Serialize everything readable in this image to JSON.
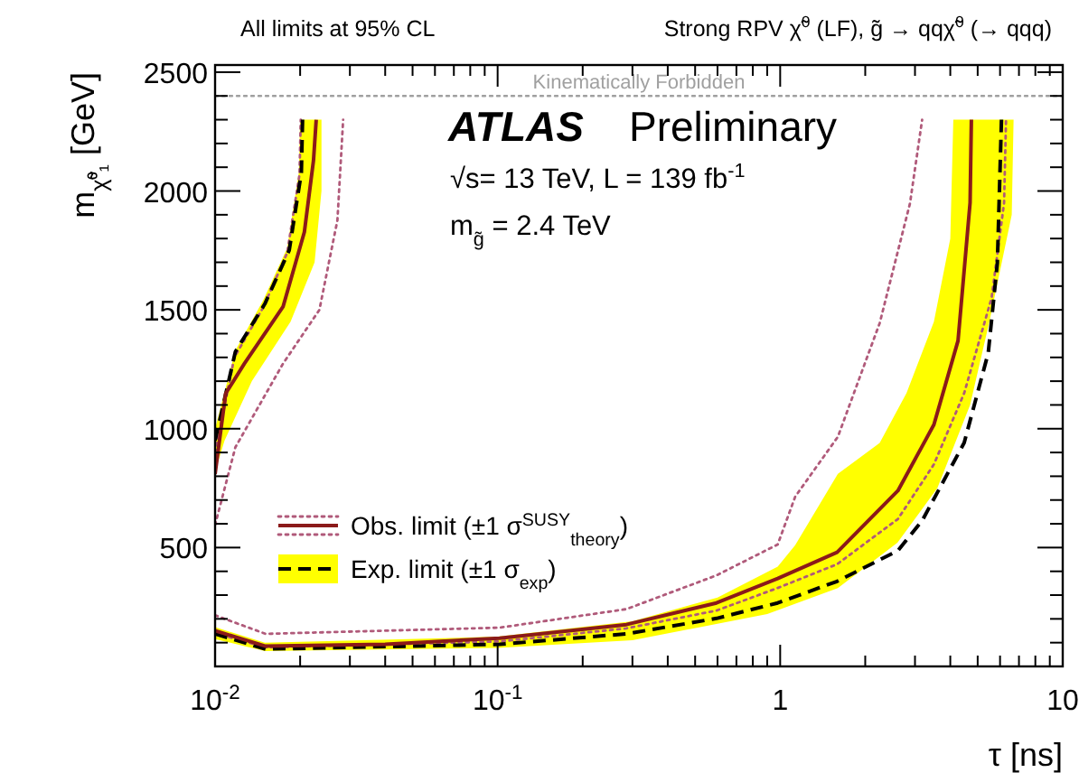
{
  "chart_data": {
    "type": "line",
    "title": "Strong RPV χ̃$^{0}$ (LF), g̃ → qqχ̃$^{0}$ (→ qqq)",
    "xlabel": "τ [ns]",
    "ylabel": "m$_{χ̃⁰₁}$ [GeV]",
    "annotations": [
      "All limits at 95% CL",
      "ATLAS",
      "Preliminary",
      "√s= 13 TeV, L = 139 fb$^{-1}$",
      "m$_{g̃}$ = 2.4 TeV"
    ],
    "log": "x",
    "xlim": [
      0.01,
      10
    ],
    "ylim": [
      0,
      2530
    ],
    "xticks": [
      {
        "value": 0.01,
        "label": "10$^{-2}$"
      },
      {
        "value": 0.02,
        "label": null
      },
      {
        "value": 0.03,
        "label": null
      },
      {
        "value": 0.04,
        "label": null
      },
      {
        "value": 0.05,
        "label": null
      },
      {
        "value": 0.06,
        "label": null
      },
      {
        "value": 0.07,
        "label": null
      },
      {
        "value": 0.08,
        "label": null
      },
      {
        "value": 0.09,
        "label": null
      },
      {
        "value": 0.1,
        "label": "10$^{-1}$"
      },
      {
        "value": 0.2,
        "label": null
      },
      {
        "value": 0.3,
        "label": null
      },
      {
        "value": 0.4,
        "label": null
      },
      {
        "value": 0.5,
        "label": null
      },
      {
        "value": 0.6,
        "label": null
      },
      {
        "value": 0.7,
        "label": null
      },
      {
        "value": 0.8,
        "label": null
      },
      {
        "value": 0.9,
        "label": null
      },
      1,
      {
        "value": 2,
        "label": null
      },
      {
        "value": 3,
        "label": null
      },
      {
        "value": 4,
        "label": null
      },
      {
        "value": 5,
        "label": null
      },
      {
        "value": 6,
        "label": null
      },
      {
        "value": 7,
        "label": null
      },
      {
        "value": 8,
        "label": null
      },
      {
        "value": 9,
        "label": null
      },
      10
    ],
    "yticks": [
      {
        "value": 100,
        "label": null
      },
      {
        "value": 200,
        "label": null
      },
      {
        "value": 300,
        "label": null
      },
      {
        "value": 400,
        "label": null
      },
      500,
      {
        "value": 600,
        "label": null
      },
      {
        "value": 700,
        "label": null
      },
      {
        "value": 800,
        "label": null
      },
      {
        "value": 900,
        "label": null
      },
      1000,
      {
        "value": 1100,
        "label": null
      },
      {
        "value": 1200,
        "label": null
      },
      {
        "value": 1300,
        "label": null
      },
      {
        "value": 1400,
        "label": null
      },
      1500,
      {
        "value": 1600,
        "label": null
      },
      {
        "value": 1700,
        "label": null
      },
      {
        "value": 1800,
        "label": null
      },
      {
        "value": 1900,
        "label": null
      },
      2000,
      {
        "value": 2100,
        "label": null
      },
      {
        "value": 2200,
        "label": null
      },
      {
        "value": 2300,
        "label": null
      },
      {
        "value": 2400,
        "label": null
      },
      2500
    ],
    "legend": "bottom left",
    "ref_lines": [
      {
        "axis": "y",
        "value": 2400,
        "label": "Kinematically Forbidden",
        "color": "#a0a0a0",
        "line_style": "dotted"
      }
    ],
    "series": [
      {
        "type": "area",
        "color": "#ffff00",
        "x": [
          0.01,
          0.0118,
          0.0148,
          0.018,
          0.0198,
          0.02,
          0.0238,
          0.0238,
          0.0225,
          0.0185,
          0.0135,
          0.0108,
          0.01
        ],
        "values": [
          1000,
          1330,
          1540,
          1760,
          2080,
          2300,
          2300,
          2000,
          1700,
          1450,
          1200,
          950,
          820
        ]
      },
      {
        "type": "area",
        "color": "#ffff00",
        "x": [
          0.01,
          0.015,
          0.1,
          0.3,
          0.6,
          0.98,
          1.13,
          1.6,
          2.25,
          2.8,
          3.5,
          4.0,
          4.1,
          6.7,
          6.6,
          5.5,
          4.7,
          3.6,
          2.6,
          1.6,
          0.9,
          0.3,
          0.1,
          0.015,
          0.01
        ],
        "values": [
          165,
          100,
          125,
          190,
          290,
          420,
          510,
          810,
          940,
          1150,
          1450,
          1800,
          2300,
          2300,
          1900,
          1450,
          1100,
          750,
          520,
          330,
          220,
          110,
          78,
          65,
          115
        ]
      },
      {
        "color": "#b05a7a",
        "line_style": "dotted",
        "x": [
          0.01,
          0.0118,
          0.0174,
          0.0234,
          0.0271,
          0.0284
        ],
        "values": [
          595,
          922,
          1274,
          1500,
          1877,
          2300
        ]
      },
      {
        "color": "#b05a7a",
        "line_style": "dotted",
        "x": [
          0.01,
          0.0117,
          0.0148,
          0.018,
          0.0199,
          0.0201
        ],
        "values": [
          900,
          1300,
          1510,
          1740,
          2070,
          2300
        ]
      },
      {
        "color": "#b05a7a",
        "line_style": "dotted",
        "x": [
          0.01,
          0.0151,
          0.1016,
          0.2855,
          0.595,
          0.98,
          1.13,
          1.6,
          2.25,
          2.88,
          3.18
        ],
        "values": [
          215,
          137,
          163,
          241,
          383,
          513,
          714,
          966,
          1444,
          1948,
          2300
        ]
      },
      {
        "color": "#b05a7a",
        "line_style": "dotted",
        "x": [
          0.01,
          0.0151,
          0.1016,
          0.2855,
          0.595,
          0.98,
          1.59,
          2.61,
          3.5,
          4.48,
          5.6,
          6.2,
          6.3
        ],
        "values": [
          140,
          80,
          105,
          160,
          235,
          330,
          430,
          620,
          850,
          1150,
          1550,
          1950,
          2300
        ]
      },
      {
        "color": "#000000",
        "line_style": "dashed",
        "x": [
          0.01,
          0.0118,
          0.015,
          0.0183,
          0.0202,
          0.0204
        ],
        "values": [
          950,
          1324,
          1525,
          1751,
          2078,
          2300
        ]
      },
      {
        "name": "Exp. limit (±1 σ$_{exp}$)",
        "color": "#000000",
        "line_style": "dashed",
        "x": [
          0.01,
          0.0151,
          0.1016,
          0.2855,
          0.595,
          0.98,
          1.59,
          2.61,
          3.18,
          4.48,
          5.45,
          5.87,
          6.07
        ],
        "values": [
          137,
          73,
          93,
          137,
          202,
          267,
          358,
          487,
          613,
          941,
          1319,
          1697,
          2300
        ]
      },
      {
        "color": "#8b1a1a",
        "line_style": "solid",
        "x": [
          0.01,
          0.0109,
          0.0127,
          0.0174,
          0.0207,
          0.0223,
          0.0228
        ],
        "values": [
          809,
          1148,
          1274,
          1513,
          1827,
          2128,
          2300
        ]
      },
      {
        "name": "Obs. limit (±1 σ$^{SUSY}$$_{theory}$)",
        "color": "#8b1a1a",
        "line_style": "solid",
        "x": [
          0.01,
          0.0151,
          0.04,
          0.1016,
          0.2855,
          0.595,
          0.98,
          1.59,
          2.61,
          3.5,
          4.26,
          4.7,
          4.75
        ],
        "values": [
          150,
          85,
          93,
          119,
          176,
          267,
          370,
          480,
          739,
          1017,
          1370,
          1950,
          2300
        ]
      }
    ]
  }
}
